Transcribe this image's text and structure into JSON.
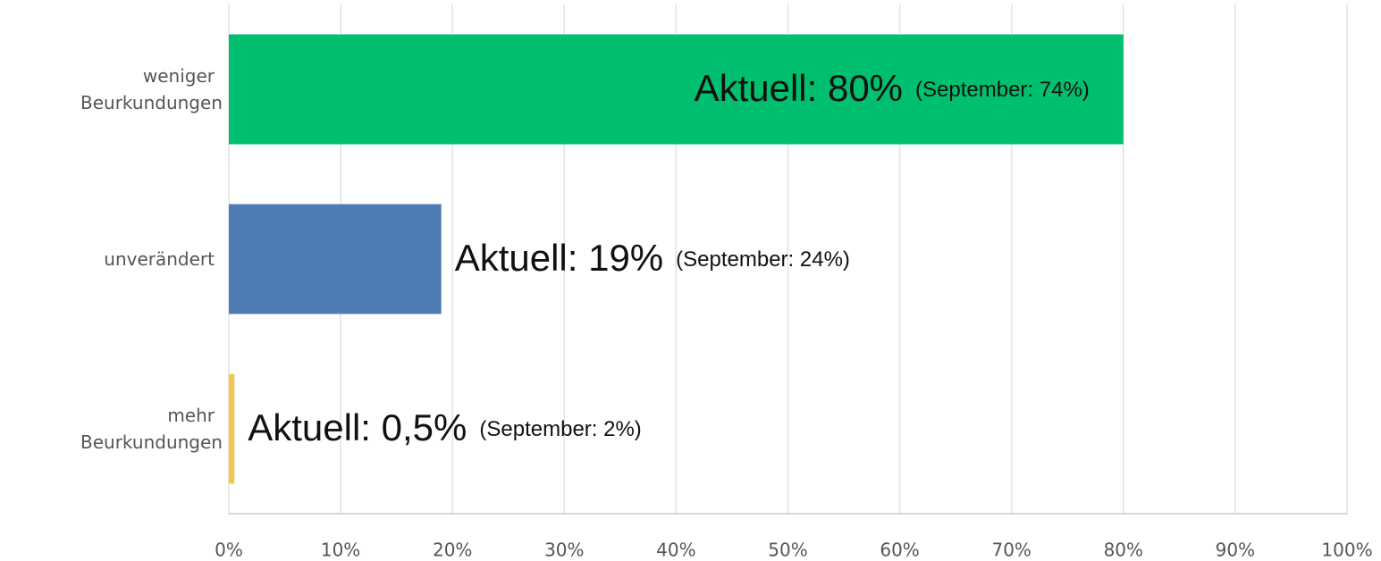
{
  "chart_data": {
    "type": "hbar",
    "categories": [
      "weniger Beurkundungen",
      "unverändert",
      "mehr Beurkundungen"
    ],
    "values": [
      80,
      19,
      0.5
    ],
    "value_labels": [
      "Aktuell: 80%",
      "Aktuell: 19%",
      "Aktuell: 0,5%"
    ],
    "comparison_labels": [
      "(September: 74%)",
      "(September: 24%)",
      "(September: 2%)"
    ],
    "colors": [
      "#00bf6f",
      "#507cb6",
      "#f3c74b"
    ],
    "xlim": [
      0,
      100
    ],
    "xticks": [
      {
        "value": 0,
        "label": "0%"
      },
      {
        "value": 10,
        "label": "10%"
      },
      {
        "value": 20,
        "label": "20%"
      },
      {
        "value": 30,
        "label": "30%"
      },
      {
        "value": 40,
        "label": "40%"
      },
      {
        "value": 50,
        "label": "50%"
      },
      {
        "value": 60,
        "label": "60%"
      },
      {
        "value": 70,
        "label": "70%"
      },
      {
        "value": 80,
        "label": "80%"
      },
      {
        "value": 90,
        "label": "90%"
      },
      {
        "value": 100,
        "label": "100%"
      }
    ],
    "grid": true
  }
}
